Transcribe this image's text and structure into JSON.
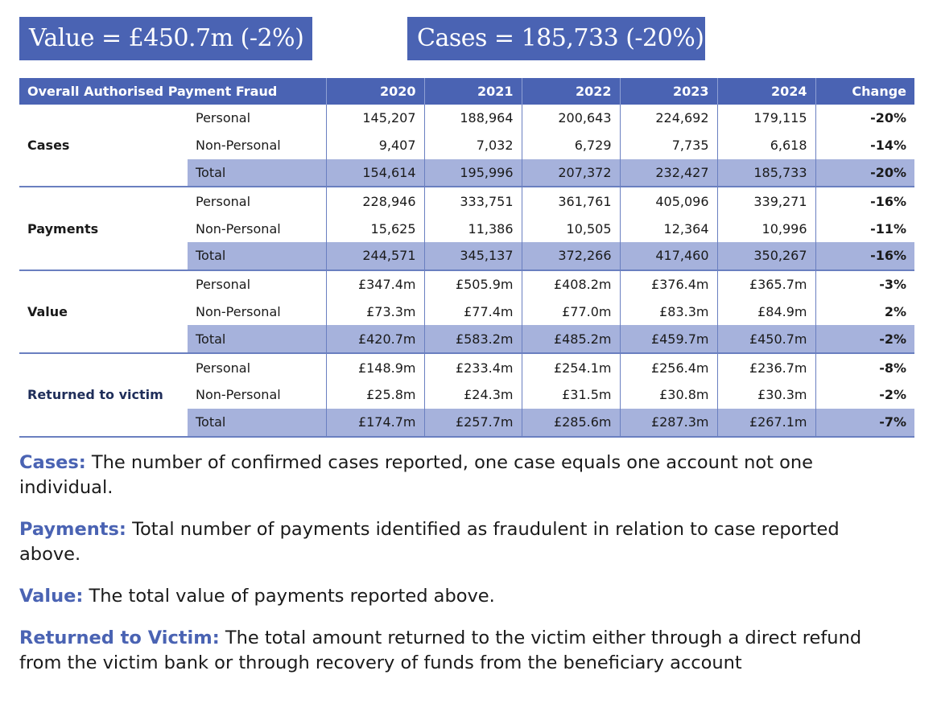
{
  "kpis": {
    "value": "Value = £450.7m (-2%)",
    "cases": "Cases = 185,733 (-20%)"
  },
  "table": {
    "title": "Overall Authorised Payment Fraud",
    "columns": [
      "2020",
      "2021",
      "2022",
      "2023",
      "2024",
      "Change"
    ],
    "groups": [
      {
        "name": "Cases",
        "rows": [
          {
            "label": "Personal",
            "values": [
              "145,207",
              "188,964",
              "200,643",
              "224,692",
              "179,115"
            ],
            "change": "-20%"
          },
          {
            "label": "Non-Personal",
            "values": [
              "9,407",
              "7,032",
              "6,729",
              "7,735",
              "6,618"
            ],
            "change": "-14%"
          },
          {
            "label": "Total",
            "values": [
              "154,614",
              "195,996",
              "207,372",
              "232,427",
              "185,733"
            ],
            "change": "-20%"
          }
        ]
      },
      {
        "name": "Payments",
        "rows": [
          {
            "label": "Personal",
            "values": [
              "228,946",
              "333,751",
              "361,761",
              "405,096",
              "339,271"
            ],
            "change": "-16%"
          },
          {
            "label": "Non-Personal",
            "values": [
              "15,625",
              "11,386",
              "10,505",
              "12,364",
              "10,996"
            ],
            "change": "-11%"
          },
          {
            "label": "Total",
            "values": [
              "244,571",
              "345,137",
              "372,266",
              "417,460",
              "350,267"
            ],
            "change": "-16%"
          }
        ]
      },
      {
        "name": "Value",
        "rows": [
          {
            "label": "Personal",
            "values": [
              "£347.4m",
              "£505.9m",
              "£408.2m",
              "£376.4m",
              "£365.7m"
            ],
            "change": "-3%"
          },
          {
            "label": "Non-Personal",
            "values": [
              "£73.3m",
              "£77.4m",
              "£77.0m",
              "£83.3m",
              "£84.9m"
            ],
            "change": "2%"
          },
          {
            "label": "Total",
            "values": [
              "£420.7m",
              "£583.2m",
              "£485.2m",
              "£459.7m",
              "£450.7m"
            ],
            "change": "-2%"
          }
        ]
      },
      {
        "name": "Returned to victim",
        "rows": [
          {
            "label": "Personal",
            "values": [
              "£148.9m",
              "£233.4m",
              "£254.1m",
              "£256.4m",
              "£236.7m"
            ],
            "change": "-8%"
          },
          {
            "label": "Non-Personal",
            "values": [
              "£25.8m",
              "£24.3m",
              "£31.5m",
              "£30.8m",
              "£30.3m"
            ],
            "change": "-2%"
          },
          {
            "label": "Total",
            "values": [
              "£174.7m",
              "£257.7m",
              "£285.6m",
              "£287.3m",
              "£267.1m"
            ],
            "change": "-7%"
          }
        ]
      }
    ]
  },
  "notes": [
    {
      "label": "Cases:",
      "text": " The number of confirmed cases reported, one case equals one account not one individual."
    },
    {
      "label": "Payments:",
      "text": " Total number of payments identified as fraudulent in relation to case reported above."
    },
    {
      "label": "Value:",
      "text": " The total value of payments reported above."
    },
    {
      "label": "Returned to Victim:",
      "text": " The total amount returned to the victim either through a direct refund from the victim bank or through recovery of funds from the beneficiary account"
    }
  ],
  "colors": {
    "header_blue": "#4a63b3",
    "total_row": "#a6b2dc",
    "label_blue": "#4a63b3"
  }
}
